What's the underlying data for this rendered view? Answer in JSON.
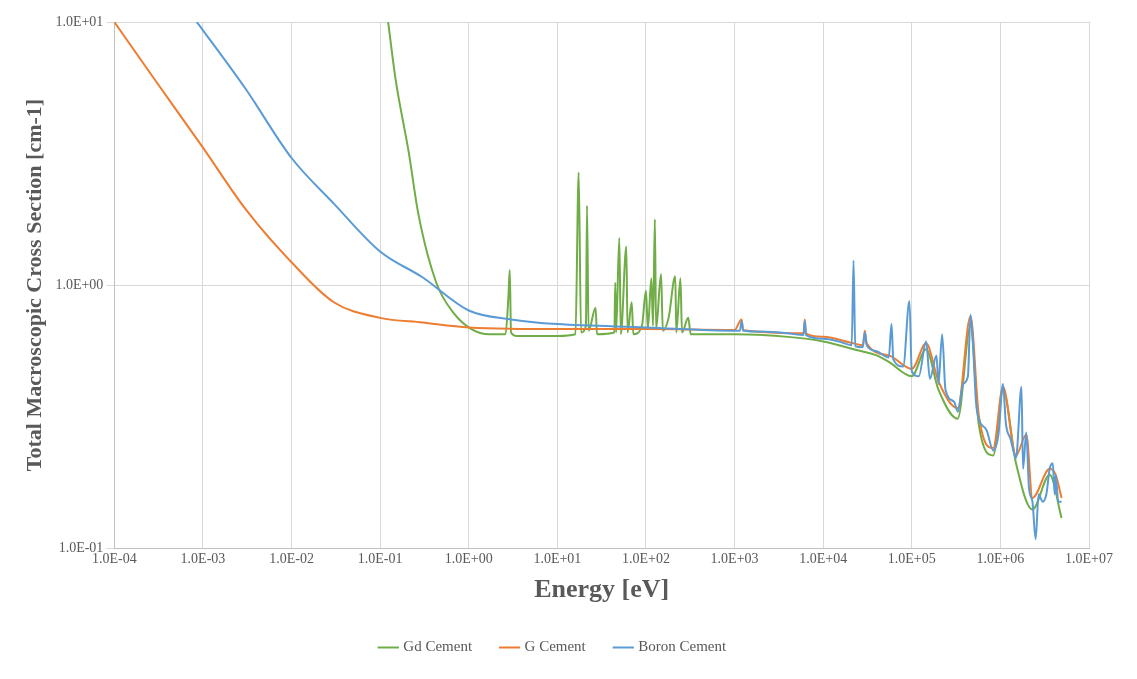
{
  "chart_data": {
    "type": "line",
    "xlabel": "Energy [eV]",
    "ylabel": "Total Macroscopic Cross Section [cm-1]",
    "log": "xy",
    "grid": true,
    "legend": "bottom",
    "marker": "none",
    "line_style": "solid",
    "xlim": [
      0.0001,
      10000000
    ],
    "ylim": [
      0.1,
      10
    ],
    "xticks": [
      {
        "value": 0.0001,
        "label": "1.0E-04"
      },
      {
        "value": 0.001,
        "label": "1.0E-03"
      },
      {
        "value": 0.01,
        "label": "1.0E-02"
      },
      {
        "value": 0.1,
        "label": "1.0E-01"
      },
      {
        "value": 1,
        "label": "1.0E+00"
      },
      {
        "value": 10,
        "label": "1.0E+01"
      },
      {
        "value": 100,
        "label": "1.0E+02"
      },
      {
        "value": 1000,
        "label": "1.0E+03"
      },
      {
        "value": 10000,
        "label": "1.0E+04"
      },
      {
        "value": 100000,
        "label": "1.0E+05"
      },
      {
        "value": 1000000,
        "label": "1.0E+06"
      },
      {
        "value": 10000000,
        "label": "1.0E+07"
      }
    ],
    "yticks": [
      {
        "value": 0.1,
        "label": "1.0E-01"
      },
      {
        "value": 1,
        "label": "1.0E+00"
      },
      {
        "value": 10,
        "label": "1.0E+01"
      }
    ],
    "series": [
      {
        "name": "Gd Cement",
        "color": "#70ad47",
        "x": [
          0.123,
          0.15,
          0.21,
          0.27,
          0.43,
          0.68,
          1.07,
          1.7,
          2.6,
          2.8,
          2.9,
          3.0,
          3.5,
          10,
          16,
          17.4,
          18.5,
          21,
          21.6,
          22.5,
          27,
          28,
          44,
          45,
          46,
          50,
          52,
          60,
          62,
          69,
          72,
          90,
          100,
          105,
          115,
          120,
          126,
          130,
          148,
          155,
          180,
          214,
          220,
          245,
          255,
          300,
          320,
          1000,
          4000,
          10000,
          22000,
          40000,
          55000,
          100000,
          145000,
          200000,
          330000,
          460000,
          570000,
          830000,
          1070000,
          1500000,
          2300000,
          3600000,
          4900000
        ],
        "values": [
          10,
          6.0,
          3.2,
          1.86,
          1.02,
          0.78,
          0.68,
          0.65,
          0.65,
          0.9,
          1.14,
          0.66,
          0.64,
          0.64,
          0.65,
          2.68,
          0.66,
          0.7,
          2.0,
          0.67,
          0.82,
          0.65,
          0.66,
          1.02,
          0.66,
          1.51,
          0.65,
          1.4,
          0.66,
          0.86,
          0.65,
          0.7,
          0.95,
          0.68,
          1.06,
          0.7,
          1.78,
          0.68,
          1.1,
          0.67,
          0.75,
          1.08,
          0.66,
          1.06,
          0.66,
          0.75,
          0.65,
          0.65,
          0.635,
          0.61,
          0.57,
          0.54,
          0.51,
          0.45,
          0.57,
          0.4,
          0.31,
          0.7,
          0.295,
          0.225,
          0.4,
          0.21,
          0.14,
          0.19,
          0.13
        ]
      },
      {
        "name": "G Cement",
        "color": "#ed7d31",
        "x": [
          0.0001,
          0.0003,
          0.001,
          0.003,
          0.01,
          0.03,
          0.1,
          0.3,
          1,
          10,
          100,
          1000,
          1200,
          1250,
          6000,
          6200,
          6400,
          10000,
          22000,
          28000,
          29500,
          31000,
          55000,
          100000,
          145000,
          200000,
          330000,
          460000,
          570000,
          830000,
          1070000,
          1500000,
          1960000,
          2300000,
          3600000,
          4200000,
          4900000
        ],
        "values": [
          10,
          5.9,
          3.33,
          1.95,
          1.22,
          0.86,
          0.75,
          0.72,
          0.69,
          0.68,
          0.68,
          0.675,
          0.74,
          0.675,
          0.655,
          0.74,
          0.655,
          0.635,
          0.6,
          0.59,
          0.67,
          0.6,
          0.54,
          0.48,
          0.6,
          0.43,
          0.34,
          0.76,
          0.32,
          0.24,
          0.41,
          0.225,
          0.27,
          0.155,
          0.2,
          0.19,
          0.155
        ]
      },
      {
        "name": "Boron Cement",
        "color": "#5b9bd5",
        "x": [
          0.00085,
          0.001,
          0.003,
          0.01,
          0.03,
          0.1,
          0.3,
          1,
          3,
          10,
          100,
          1000,
          1150,
          1200,
          1250,
          2000,
          4000,
          6000,
          6200,
          6400,
          10000,
          15000,
          21000,
          22000,
          23000,
          28000,
          29500,
          31000,
          40000,
          55000,
          59000,
          62000,
          80000,
          94000,
          100000,
          120000,
          145000,
          160000,
          190000,
          200000,
          220000,
          240000,
          300000,
          330000,
          380000,
          430000,
          460000,
          490000,
          530000,
          570000,
          700000,
          830000,
          950000,
          1070000,
          1150000,
          1300000,
          1500000,
          1730000,
          1800000,
          1960000,
          2100000,
          2300000,
          2500000,
          2700000,
          3000000,
          3300000,
          3600000,
          3900000,
          4100000,
          4200000,
          4500000,
          4900000
        ],
        "values": [
          10,
          9.3,
          5.6,
          3.04,
          2.04,
          1.34,
          1.07,
          0.8,
          0.74,
          0.71,
          0.69,
          0.67,
          0.67,
          0.73,
          0.67,
          0.665,
          0.655,
          0.645,
          0.73,
          0.645,
          0.625,
          0.61,
          0.59,
          1.24,
          0.585,
          0.58,
          0.66,
          0.59,
          0.56,
          0.53,
          0.71,
          0.52,
          0.49,
          0.87,
          0.47,
          0.45,
          0.61,
          0.44,
          0.54,
          0.42,
          0.65,
          0.4,
          0.36,
          0.33,
          0.42,
          0.45,
          0.77,
          0.6,
          0.36,
          0.31,
          0.28,
          0.235,
          0.27,
          0.42,
          0.3,
          0.26,
          0.22,
          0.41,
          0.2,
          0.275,
          0.17,
          0.15,
          0.108,
          0.16,
          0.15,
          0.16,
          0.2,
          0.21,
          0.16,
          0.19,
          0.15,
          0.15
        ]
      }
    ]
  }
}
